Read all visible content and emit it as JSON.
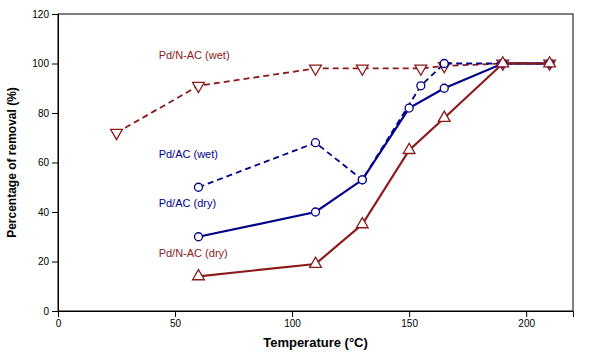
{
  "chart_data": {
    "type": "line",
    "xlabel": "Temperature (°C)",
    "ylabel": "Percentage of removal (%)",
    "xlim": [
      0,
      220
    ],
    "ylim": [
      0,
      120
    ],
    "xticks": [
      0,
      50,
      100,
      150,
      200
    ],
    "yticks": [
      0,
      20,
      40,
      60,
      80,
      100,
      120
    ],
    "grid": false,
    "series": [
      {
        "color": "#8B1A1A",
        "line_style": "dashed",
        "marker": "triangle-down",
        "x": [
          25,
          60,
          110,
          130,
          155,
          165,
          190,
          210
        ],
        "values": [
          72,
          91,
          98,
          98,
          98,
          99,
          100,
          100
        ]
      },
      {
        "color": "#00008B",
        "line_style": "dashed",
        "marker": "circle",
        "x": [
          60,
          110,
          130,
          155,
          165,
          190,
          210
        ],
        "values": [
          50,
          68,
          53,
          91,
          100,
          100,
          100
        ]
      },
      {
        "color": "#00008B",
        "line_style": "solid",
        "marker": "circle",
        "x": [
          60,
          110,
          130,
          150,
          165,
          190,
          210
        ],
        "values": [
          30,
          40,
          53,
          82,
          90,
          100,
          100
        ]
      },
      {
        "color": "#8B1A1A",
        "line_style": "solid",
        "marker": "triangle-up",
        "x": [
          60,
          110,
          130,
          150,
          165,
          190,
          210
        ],
        "values": [
          14,
          19,
          35,
          65,
          78,
          100,
          100
        ]
      }
    ],
    "annotations": [
      {
        "text": "Pd/N-AC (wet)",
        "x": 43,
        "y": 103,
        "color": "#8B1A1A"
      },
      {
        "text": "Pd/AC (wet)",
        "x": 43,
        "y": 63,
        "color": "#00008B"
      },
      {
        "text": "Pd/AC (dry)",
        "x": 43,
        "y": 43,
        "color": "#00008B"
      },
      {
        "text": "Pd/N-AC (dry)",
        "x": 43,
        "y": 23,
        "color": "#8B1A1A"
      }
    ]
  }
}
